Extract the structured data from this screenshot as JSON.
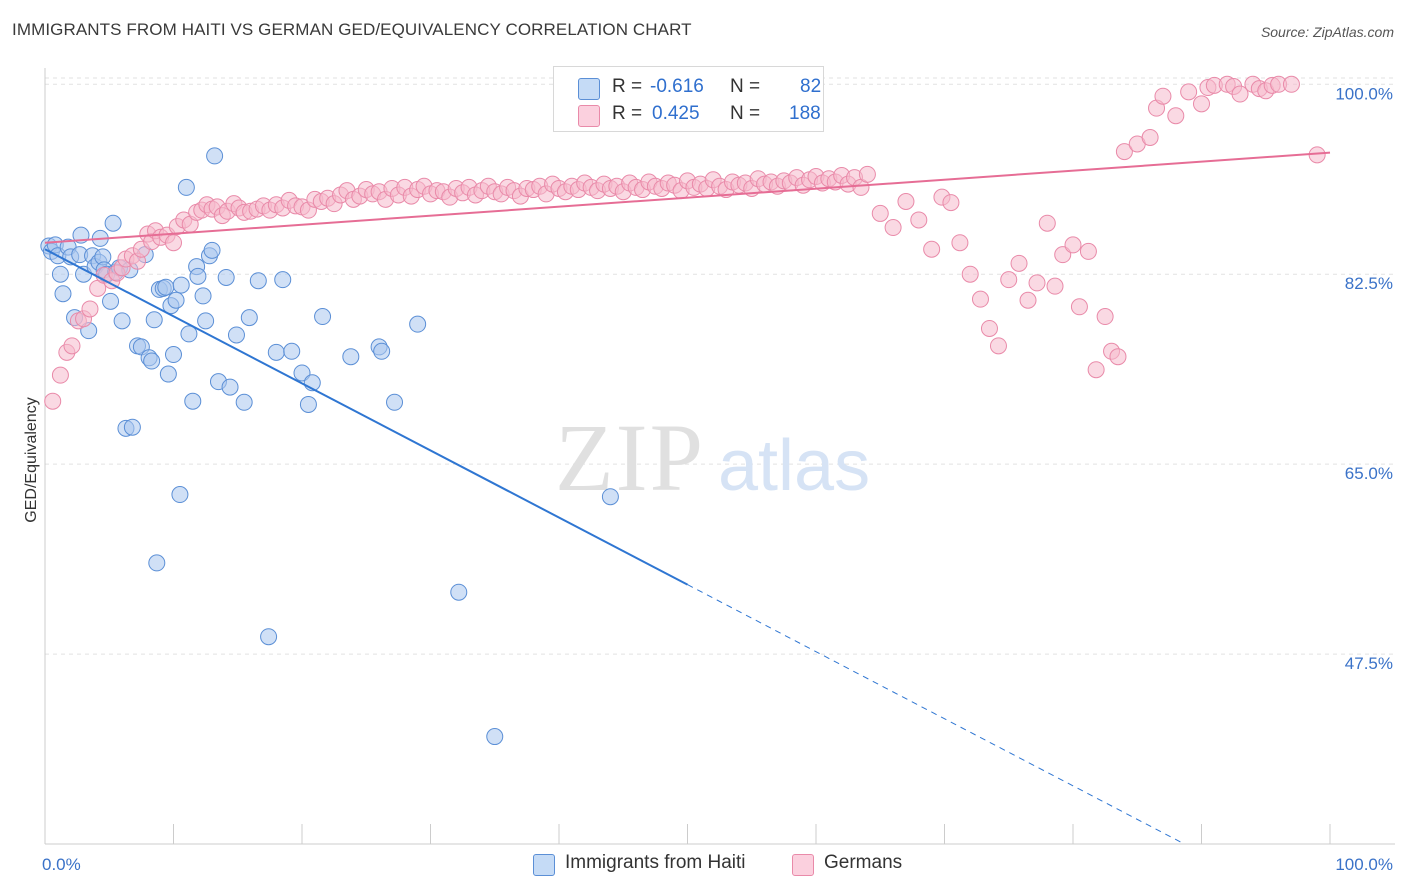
{
  "title": "IMMIGRANTS FROM HAITI VS GERMAN GED/EQUIVALENCY CORRELATION CHART",
  "source": "Source: ZipAtlas.com",
  "watermark": {
    "zip": "ZIP",
    "atlas": "atlas"
  },
  "colors": {
    "blue_fill": "#a9c7ef",
    "blue_stroke": "#5b8fd6",
    "blue_line": "#2f76d2",
    "pink_fill": "#f6b9cc",
    "pink_stroke": "#e98aa9",
    "pink_line": "#e66d95",
    "tick_label": "#3a72c8",
    "grid": "#e2e2e2"
  },
  "legend": {
    "rows": [
      {
        "r_label": "R =",
        "r_value": "-0.616",
        "n_label": "N =",
        "n_value": "82",
        "series": "blue"
      },
      {
        "r_label": "R =",
        "r_value": "0.425",
        "n_label": "N =",
        "n_value": "188",
        "series": "pink"
      }
    ]
  },
  "bottom_legend": [
    {
      "label": "Immigrants from Haiti",
      "series": "blue"
    },
    {
      "label": "Germans",
      "series": "pink"
    }
  ],
  "chart_data": {
    "type": "scatter",
    "title": "IMMIGRANTS FROM HAITI VS GERMAN GED/EQUIVALENCY CORRELATION CHART",
    "xlabel": "",
    "ylabel": "GED/Equivalency",
    "xlim": [
      0,
      100
    ],
    "ylim": [
      30,
      101.5
    ],
    "x_tick_labels": [
      "0.0%",
      "100.0%"
    ],
    "y_ticks": [
      47.5,
      65.0,
      82.5,
      100.0
    ],
    "y_tick_labels": [
      "47.5%",
      "65.0%",
      "82.5%",
      "100.0%"
    ],
    "grid": true,
    "legend_position": "top-center",
    "series": [
      {
        "name": "Immigrants from Haiti",
        "color": "#a9c7ef",
        "trend": {
          "x0": 0,
          "y0": 84.8,
          "x1": 50,
          "y1": 53.9,
          "dashed_to_x": 100,
          "dashed_to_y": 23.0
        },
        "points": [
          [
            0.3,
            85.1
          ],
          [
            0.5,
            84.6
          ],
          [
            0.8,
            85.2
          ],
          [
            1.0,
            84.2
          ],
          [
            1.2,
            82.5
          ],
          [
            1.4,
            80.7
          ],
          [
            1.8,
            85.0
          ],
          [
            2.0,
            84.1
          ],
          [
            2.3,
            78.5
          ],
          [
            2.7,
            84.3
          ],
          [
            2.8,
            86.1
          ],
          [
            3.0,
            82.5
          ],
          [
            3.4,
            77.3
          ],
          [
            3.7,
            84.2
          ],
          [
            3.9,
            83.2
          ],
          [
            4.2,
            83.6
          ],
          [
            4.3,
            85.8
          ],
          [
            4.5,
            84.1
          ],
          [
            4.6,
            82.9
          ],
          [
            4.8,
            82.5
          ],
          [
            5.1,
            80.0
          ],
          [
            5.3,
            87.2
          ],
          [
            5.5,
            82.7
          ],
          [
            5.8,
            83.1
          ],
          [
            6.0,
            78.2
          ],
          [
            6.3,
            68.3
          ],
          [
            6.6,
            82.9
          ],
          [
            6.8,
            68.4
          ],
          [
            7.2,
            75.9
          ],
          [
            7.5,
            75.8
          ],
          [
            7.8,
            84.3
          ],
          [
            8.1,
            74.8
          ],
          [
            8.3,
            74.5
          ],
          [
            8.5,
            78.3
          ],
          [
            8.7,
            55.9
          ],
          [
            8.9,
            81.1
          ],
          [
            9.2,
            81.2
          ],
          [
            9.4,
            81.3
          ],
          [
            9.6,
            73.3
          ],
          [
            9.8,
            79.6
          ],
          [
            10.0,
            75.1
          ],
          [
            10.2,
            80.1
          ],
          [
            10.5,
            62.2
          ],
          [
            10.6,
            81.5
          ],
          [
            11.0,
            90.5
          ],
          [
            11.2,
            77.0
          ],
          [
            11.5,
            70.8
          ],
          [
            11.8,
            83.2
          ],
          [
            11.9,
            82.3
          ],
          [
            12.3,
            80.5
          ],
          [
            12.5,
            78.2
          ],
          [
            12.8,
            84.2
          ],
          [
            13.0,
            84.7
          ],
          [
            13.2,
            93.4
          ],
          [
            13.5,
            72.6
          ],
          [
            14.1,
            82.2
          ],
          [
            14.4,
            72.1
          ],
          [
            14.9,
            76.9
          ],
          [
            15.5,
            70.7
          ],
          [
            15.9,
            78.5
          ],
          [
            16.6,
            81.9
          ],
          [
            17.4,
            49.1
          ],
          [
            18.0,
            75.3
          ],
          [
            18.5,
            82.0
          ],
          [
            19.2,
            75.4
          ],
          [
            20.0,
            73.4
          ],
          [
            20.5,
            70.5
          ],
          [
            20.8,
            72.5
          ],
          [
            21.6,
            78.6
          ],
          [
            23.8,
            74.9
          ],
          [
            26.0,
            75.8
          ],
          [
            26.2,
            75.4
          ],
          [
            27.2,
            70.7
          ],
          [
            29.0,
            77.9
          ],
          [
            32.2,
            53.2
          ],
          [
            35.0,
            39.9
          ],
          [
            44.0,
            62.0
          ]
        ]
      },
      {
        "name": "Germans",
        "color": "#f6b9cc",
        "trend": {
          "x0": 0,
          "y0": 85.4,
          "x1": 100,
          "y1": 93.7
        },
        "points": [
          [
            0.6,
            70.8
          ],
          [
            1.2,
            73.2
          ],
          [
            1.7,
            75.3
          ],
          [
            2.1,
            75.9
          ],
          [
            2.6,
            78.2
          ],
          [
            3.0,
            78.4
          ],
          [
            3.5,
            79.3
          ],
          [
            4.1,
            81.2
          ],
          [
            4.6,
            82.4
          ],
          [
            5.2,
            81.9
          ],
          [
            5.6,
            82.6
          ],
          [
            6.0,
            83.1
          ],
          [
            6.3,
            83.9
          ],
          [
            6.8,
            84.2
          ],
          [
            7.2,
            83.7
          ],
          [
            7.5,
            84.8
          ],
          [
            8.0,
            86.2
          ],
          [
            8.3,
            85.5
          ],
          [
            8.6,
            86.5
          ],
          [
            9.0,
            85.9
          ],
          [
            9.5,
            86.1
          ],
          [
            10.0,
            85.4
          ],
          [
            10.3,
            86.9
          ],
          [
            10.8,
            87.5
          ],
          [
            11.3,
            87.1
          ],
          [
            11.8,
            88.2
          ],
          [
            12.2,
            88.4
          ],
          [
            12.6,
            88.9
          ],
          [
            13.0,
            88.5
          ],
          [
            13.4,
            88.7
          ],
          [
            13.8,
            87.9
          ],
          [
            14.2,
            88.3
          ],
          [
            14.7,
            89.0
          ],
          [
            15.1,
            88.6
          ],
          [
            15.5,
            88.2
          ],
          [
            16.0,
            88.3
          ],
          [
            16.5,
            88.5
          ],
          [
            17.0,
            88.8
          ],
          [
            17.5,
            88.4
          ],
          [
            18.0,
            88.9
          ],
          [
            18.5,
            88.6
          ],
          [
            19.0,
            89.3
          ],
          [
            19.5,
            88.8
          ],
          [
            20.0,
            88.7
          ],
          [
            20.5,
            88.4
          ],
          [
            21.0,
            89.4
          ],
          [
            21.5,
            89.2
          ],
          [
            22.0,
            89.5
          ],
          [
            22.5,
            89.0
          ],
          [
            23.0,
            89.8
          ],
          [
            23.5,
            90.2
          ],
          [
            24.0,
            89.4
          ],
          [
            24.5,
            89.7
          ],
          [
            25.0,
            90.3
          ],
          [
            25.5,
            89.9
          ],
          [
            26.0,
            90.1
          ],
          [
            26.5,
            89.4
          ],
          [
            27.0,
            90.4
          ],
          [
            27.5,
            89.8
          ],
          [
            28.0,
            90.5
          ],
          [
            28.5,
            89.7
          ],
          [
            29.0,
            90.3
          ],
          [
            29.5,
            90.6
          ],
          [
            30.0,
            89.9
          ],
          [
            30.5,
            90.2
          ],
          [
            31.0,
            90.1
          ],
          [
            31.5,
            89.6
          ],
          [
            32.0,
            90.4
          ],
          [
            32.5,
            90.0
          ],
          [
            33.0,
            90.5
          ],
          [
            33.5,
            89.8
          ],
          [
            34.0,
            90.2
          ],
          [
            34.5,
            90.6
          ],
          [
            35.0,
            90.1
          ],
          [
            35.5,
            89.9
          ],
          [
            36.0,
            90.5
          ],
          [
            36.5,
            90.2
          ],
          [
            37.0,
            89.7
          ],
          [
            37.5,
            90.4
          ],
          [
            38.0,
            90.3
          ],
          [
            38.5,
            90.6
          ],
          [
            39.0,
            89.9
          ],
          [
            39.5,
            90.8
          ],
          [
            40.0,
            90.4
          ],
          [
            40.5,
            90.1
          ],
          [
            41.0,
            90.6
          ],
          [
            41.5,
            90.3
          ],
          [
            42.0,
            90.9
          ],
          [
            42.5,
            90.5
          ],
          [
            43.0,
            90.2
          ],
          [
            43.5,
            90.8
          ],
          [
            44.0,
            90.4
          ],
          [
            44.5,
            90.6
          ],
          [
            45.0,
            90.1
          ],
          [
            45.5,
            90.9
          ],
          [
            46.0,
            90.5
          ],
          [
            46.5,
            90.3
          ],
          [
            47.0,
            91.0
          ],
          [
            47.5,
            90.6
          ],
          [
            48.0,
            90.4
          ],
          [
            48.5,
            90.9
          ],
          [
            49.0,
            90.7
          ],
          [
            49.5,
            90.2
          ],
          [
            50.0,
            91.1
          ],
          [
            50.5,
            90.5
          ],
          [
            51.0,
            90.8
          ],
          [
            51.5,
            90.4
          ],
          [
            52.0,
            91.2
          ],
          [
            52.5,
            90.6
          ],
          [
            53.0,
            90.3
          ],
          [
            53.5,
            91.0
          ],
          [
            54.0,
            90.7
          ],
          [
            54.5,
            90.9
          ],
          [
            55.0,
            90.4
          ],
          [
            55.5,
            91.3
          ],
          [
            56.0,
            90.8
          ],
          [
            56.5,
            91.0
          ],
          [
            57.0,
            90.6
          ],
          [
            57.5,
            91.1
          ],
          [
            58.0,
            90.9
          ],
          [
            58.5,
            91.4
          ],
          [
            59.0,
            90.7
          ],
          [
            59.5,
            91.2
          ],
          [
            60.0,
            91.5
          ],
          [
            60.5,
            90.9
          ],
          [
            61.0,
            91.3
          ],
          [
            61.5,
            91.0
          ],
          [
            62.0,
            91.6
          ],
          [
            62.5,
            90.8
          ],
          [
            63.0,
            91.4
          ],
          [
            63.5,
            90.5
          ],
          [
            64.0,
            91.7
          ],
          [
            65.0,
            88.1
          ],
          [
            66.0,
            86.8
          ],
          [
            67.0,
            89.2
          ],
          [
            68.0,
            87.5
          ],
          [
            69.0,
            84.8
          ],
          [
            69.8,
            89.6
          ],
          [
            70.5,
            89.1
          ],
          [
            71.2,
            85.4
          ],
          [
            72.0,
            82.5
          ],
          [
            72.8,
            80.2
          ],
          [
            73.5,
            77.5
          ],
          [
            74.2,
            75.9
          ],
          [
            75.0,
            82.0
          ],
          [
            75.8,
            83.5
          ],
          [
            76.5,
            80.1
          ],
          [
            77.2,
            81.7
          ],
          [
            78.0,
            87.2
          ],
          [
            78.6,
            81.4
          ],
          [
            79.2,
            84.3
          ],
          [
            80.0,
            85.2
          ],
          [
            80.5,
            79.5
          ],
          [
            81.2,
            84.6
          ],
          [
            81.8,
            73.7
          ],
          [
            82.5,
            78.6
          ],
          [
            83.0,
            75.4
          ],
          [
            83.5,
            74.9
          ],
          [
            84.0,
            93.8
          ],
          [
            85.0,
            94.5
          ],
          [
            86.0,
            95.1
          ],
          [
            86.5,
            97.8
          ],
          [
            87.0,
            98.9
          ],
          [
            88.0,
            97.1
          ],
          [
            89.0,
            99.3
          ],
          [
            90.0,
            98.2
          ],
          [
            90.5,
            99.7
          ],
          [
            91.0,
            99.9
          ],
          [
            92.0,
            100.0
          ],
          [
            92.5,
            99.8
          ],
          [
            93.0,
            99.1
          ],
          [
            94.0,
            100.0
          ],
          [
            94.5,
            99.6
          ],
          [
            95.0,
            99.4
          ],
          [
            95.5,
            99.9
          ],
          [
            96.0,
            100.0
          ],
          [
            97.0,
            100.0
          ],
          [
            99.0,
            93.5
          ]
        ]
      }
    ]
  }
}
